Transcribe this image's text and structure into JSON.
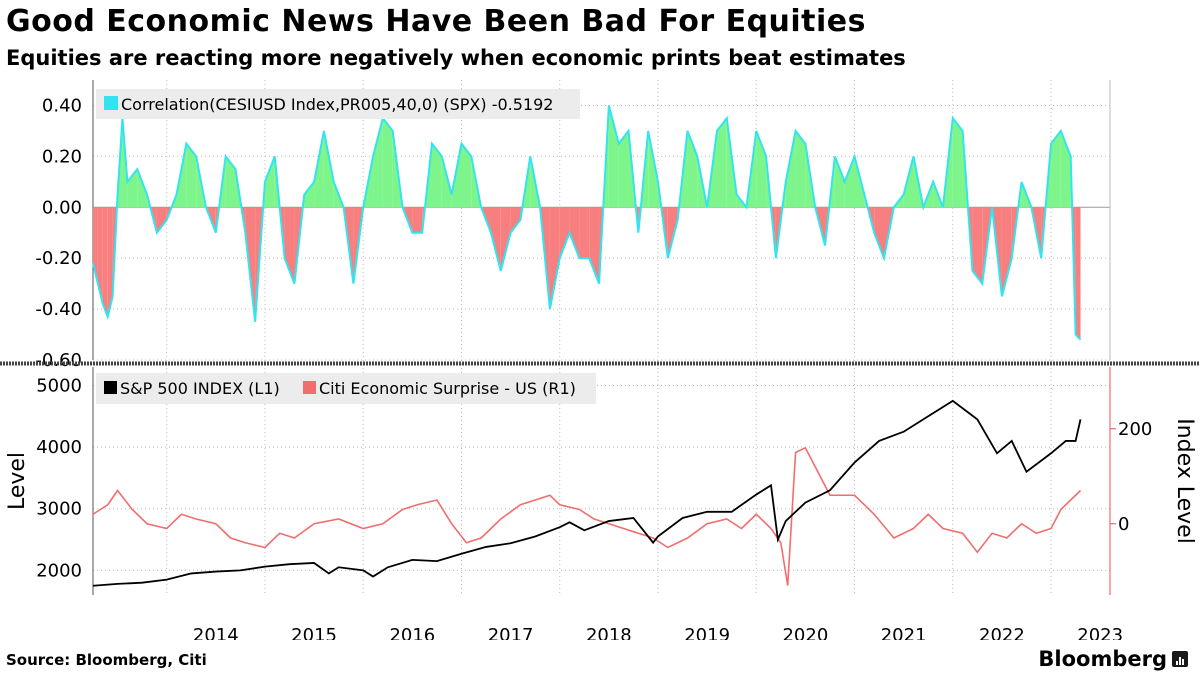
{
  "title": "Good Economic News Have Been Bad For Equities",
  "subtitle": "Equities are reacting more negatively when economic prints beat estimates",
  "source": "Source: Bloomberg, Citi",
  "brand": "Bloomberg",
  "brand_icon": "bar-chart-icon",
  "colors": {
    "correlation_line": "#33e4f0",
    "positive_fill": "#7ef58a",
    "negative_fill": "#f77f7f",
    "spx_line": "#000000",
    "cesi_line": "#f26d6d",
    "legend_bg": "#ececec"
  },
  "chart_data": [
    {
      "type": "area",
      "legend": [
        "Correlation(CESIUSD Index,PR005,40,0) (SPX) -0.5192"
      ],
      "ylim": [
        -0.6,
        0.5
      ],
      "yticks": [
        "0.40",
        "0.20",
        "0.00",
        "-0.20",
        "-0.40",
        "-0.60"
      ],
      "grid": true,
      "legend_position": "top-left",
      "series": [
        {
          "name": "Correlation(CESIUSD Index,PR005,40,0) (SPX)",
          "last_value": -0.5192,
          "x": [
            2013.25,
            2013.3,
            2013.35,
            2013.4,
            2013.45,
            2013.5,
            2013.55,
            2013.6,
            2013.7,
            2013.8,
            2013.9,
            2014.0,
            2014.1,
            2014.2,
            2014.3,
            2014.4,
            2014.5,
            2014.6,
            2014.7,
            2014.8,
            2014.9,
            2015.0,
            2015.1,
            2015.2,
            2015.3,
            2015.4,
            2015.5,
            2015.6,
            2015.7,
            2015.8,
            2015.9,
            2016.0,
            2016.1,
            2016.2,
            2016.3,
            2016.4,
            2016.5,
            2016.6,
            2016.7,
            2016.8,
            2016.9,
            2017.0,
            2017.1,
            2017.2,
            2017.3,
            2017.4,
            2017.5,
            2017.6,
            2017.7,
            2017.8,
            2017.9,
            2018.0,
            2018.1,
            2018.2,
            2018.3,
            2018.4,
            2018.5,
            2018.6,
            2018.7,
            2018.8,
            2018.9,
            2019.0,
            2019.1,
            2019.2,
            2019.3,
            2019.4,
            2019.5,
            2019.6,
            2019.7,
            2019.8,
            2019.9,
            2020.0,
            2020.1,
            2020.2,
            2020.3,
            2020.4,
            2020.5,
            2020.6,
            2020.7,
            2020.8,
            2020.9,
            2021.0,
            2021.1,
            2021.2,
            2021.3,
            2021.4,
            2021.5,
            2021.6,
            2021.7,
            2021.8,
            2021.9,
            2022.0,
            2022.1,
            2022.2,
            2022.3,
            2022.4,
            2022.5,
            2022.6,
            2022.7,
            2022.8,
            2022.9,
            2023.0,
            2023.1,
            2023.2,
            2023.25,
            2023.3
          ],
          "values": [
            -0.22,
            -0.3,
            -0.38,
            -0.43,
            -0.35,
            0.05,
            0.35,
            0.1,
            0.15,
            0.05,
            -0.1,
            -0.05,
            0.05,
            0.25,
            0.2,
            0.0,
            -0.1,
            0.2,
            0.15,
            -0.1,
            -0.45,
            0.1,
            0.2,
            -0.2,
            -0.3,
            0.05,
            0.1,
            0.3,
            0.1,
            0.0,
            -0.3,
            0.0,
            0.2,
            0.35,
            0.3,
            0.0,
            -0.1,
            -0.1,
            0.25,
            0.2,
            0.05,
            0.25,
            0.2,
            0.0,
            -0.1,
            -0.25,
            -0.1,
            -0.05,
            0.2,
            0.0,
            -0.4,
            -0.2,
            -0.1,
            -0.2,
            -0.2,
            -0.3,
            0.4,
            0.25,
            0.3,
            -0.1,
            0.3,
            0.1,
            -0.2,
            -0.05,
            0.3,
            0.2,
            0.0,
            0.3,
            0.35,
            0.05,
            0.0,
            0.3,
            0.2,
            -0.2,
            0.1,
            0.3,
            0.25,
            0.0,
            -0.15,
            0.2,
            0.1,
            0.2,
            0.05,
            -0.1,
            -0.2,
            0.0,
            0.05,
            0.2,
            0.0,
            0.1,
            0.0,
            0.35,
            0.3,
            -0.25,
            -0.3,
            0.0,
            -0.35,
            -0.2,
            0.1,
            0.0,
            -0.2,
            0.25,
            0.3,
            0.2,
            -0.5,
            -0.52
          ]
        }
      ]
    },
    {
      "type": "line",
      "legend": [
        "S&P 500 INDEX (L1)",
        "Citi Economic Surprise - US (R1)"
      ],
      "ylabel": "Level",
      "y2label": "Index Level",
      "ylim": [
        1600,
        5300
      ],
      "yticks": [
        "5000",
        "4000",
        "3000",
        "2000"
      ],
      "y2lim": [
        -150,
        330
      ],
      "y2ticks": [
        "200",
        "0"
      ],
      "xticks": [
        "2014",
        "2015",
        "2016",
        "2017",
        "2018",
        "2019",
        "2020",
        "2021",
        "2022",
        "2023"
      ],
      "xlim": [
        2013.25,
        2023.6
      ],
      "grid": true,
      "legend_position": "top-left",
      "series": [
        {
          "name": "S&P 500 INDEX (L1)",
          "axis": "left",
          "x": [
            2013.25,
            2013.5,
            2013.75,
            2014.0,
            2014.25,
            2014.5,
            2014.75,
            2015.0,
            2015.25,
            2015.5,
            2015.65,
            2015.75,
            2016.0,
            2016.1,
            2016.25,
            2016.5,
            2016.75,
            2017.0,
            2017.25,
            2017.5,
            2017.75,
            2018.0,
            2018.1,
            2018.25,
            2018.5,
            2018.75,
            2018.95,
            2019.0,
            2019.25,
            2019.5,
            2019.75,
            2020.0,
            2020.15,
            2020.22,
            2020.3,
            2020.5,
            2020.75,
            2021.0,
            2021.25,
            2021.5,
            2021.75,
            2022.0,
            2022.25,
            2022.45,
            2022.6,
            2022.75,
            2023.0,
            2023.15,
            2023.25,
            2023.3
          ],
          "values": [
            1750,
            1780,
            1800,
            1850,
            1950,
            1980,
            2000,
            2060,
            2100,
            2120,
            1950,
            2050,
            2000,
            1900,
            2050,
            2170,
            2150,
            2270,
            2380,
            2440,
            2550,
            2700,
            2780,
            2650,
            2800,
            2850,
            2450,
            2550,
            2850,
            2950,
            2950,
            3230,
            3380,
            2500,
            2800,
            3100,
            3300,
            3750,
            4100,
            4250,
            4500,
            4750,
            4450,
            3900,
            4100,
            3600,
            3900,
            4100,
            4100,
            4450
          ]
        },
        {
          "name": "Citi Economic Surprise - US (R1)",
          "axis": "right",
          "x": [
            2013.25,
            2013.4,
            2013.5,
            2013.65,
            2013.8,
            2014.0,
            2014.15,
            2014.3,
            2014.5,
            2014.65,
            2014.8,
            2015.0,
            2015.15,
            2015.3,
            2015.5,
            2015.75,
            2016.0,
            2016.2,
            2016.4,
            2016.55,
            2016.75,
            2016.9,
            2017.05,
            2017.2,
            2017.4,
            2017.6,
            2017.75,
            2017.9,
            2018.0,
            2018.2,
            2018.35,
            2018.5,
            2018.65,
            2018.8,
            2018.95,
            2019.1,
            2019.3,
            2019.5,
            2019.7,
            2019.85,
            2020.0,
            2020.15,
            2020.25,
            2020.32,
            2020.4,
            2020.5,
            2020.6,
            2020.75,
            2021.0,
            2021.2,
            2021.4,
            2021.6,
            2021.75,
            2021.9,
            2022.1,
            2022.25,
            2022.4,
            2022.55,
            2022.7,
            2022.85,
            2023.0,
            2023.1,
            2023.2,
            2023.3
          ],
          "values": [
            20,
            40,
            70,
            30,
            0,
            -10,
            20,
            10,
            0,
            -30,
            -40,
            -50,
            -20,
            -30,
            0,
            10,
            -10,
            0,
            30,
            40,
            50,
            0,
            -40,
            -30,
            10,
            40,
            50,
            60,
            40,
            30,
            10,
            0,
            -10,
            -20,
            -30,
            -50,
            -30,
            0,
            10,
            -10,
            20,
            -10,
            -40,
            -130,
            150,
            160,
            120,
            60,
            60,
            20,
            -30,
            -10,
            20,
            -10,
            -20,
            -60,
            -20,
            -30,
            0,
            -20,
            -10,
            30,
            50,
            70
          ]
        }
      ]
    }
  ]
}
